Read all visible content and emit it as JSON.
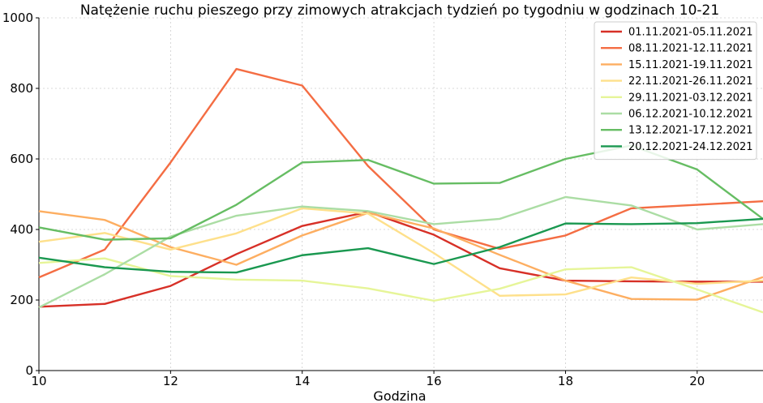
{
  "chart_data": {
    "type": "line",
    "title": "Natężenie ruchu pieszego przy zimowych atrakcjach tydzień po tygodniu w godzinach 10-21",
    "xlabel": "Godzina",
    "ylabel": "",
    "xlim": [
      10,
      21
    ],
    "ylim": [
      0,
      1000
    ],
    "xticks": [
      10,
      12,
      14,
      16,
      18,
      20
    ],
    "yticks": [
      0,
      200,
      400,
      600,
      800,
      1000
    ],
    "grid": true,
    "legend_position": "top-right",
    "x": [
      10,
      11,
      12,
      13,
      14,
      15,
      16,
      17,
      18,
      19,
      20,
      21
    ],
    "series": [
      {
        "name": "01.11.2021-05.11.2021",
        "color": "#d73027",
        "values": [
          181,
          189,
          240,
          330,
          410,
          450,
          385,
          290,
          255,
          253,
          252,
          252
        ]
      },
      {
        "name": "08.11.2021-12.11.2021",
        "color": "#f46d43",
        "values": [
          264,
          343,
          590,
          855,
          808,
          580,
          400,
          345,
          383,
          460,
          470,
          480
        ]
      },
      {
        "name": "15.11.2021-19.11.2021",
        "color": "#fdae61",
        "values": [
          452,
          427,
          350,
          300,
          383,
          447,
          403,
          328,
          255,
          203,
          201,
          265
        ]
      },
      {
        "name": "22.11.2021-26.11.2021",
        "color": "#fee08b",
        "values": [
          365,
          390,
          343,
          389,
          460,
          445,
          333,
          212,
          216,
          264,
          246,
          255
        ]
      },
      {
        "name": "29.11.2021-03.12.2021",
        "color": "#e6f598",
        "values": [
          305,
          318,
          268,
          258,
          255,
          233,
          198,
          232,
          287,
          293,
          230,
          165
        ]
      },
      {
        "name": "06.12.2021-10.12.2021",
        "color": "#abdda4",
        "values": [
          179,
          273,
          380,
          439,
          465,
          452,
          415,
          430,
          492,
          468,
          400,
          415
        ]
      },
      {
        "name": "13.12.2021-17.12.2021",
        "color": "#66bd63",
        "values": [
          406,
          371,
          375,
          470,
          590,
          597,
          530,
          532,
          600,
          638,
          570,
          430
        ]
      },
      {
        "name": "20.12.2021-24.12.2021",
        "color": "#1a9850",
        "values": [
          320,
          293,
          280,
          278,
          327,
          347,
          302,
          350,
          417,
          415,
          418,
          430
        ]
      }
    ]
  }
}
